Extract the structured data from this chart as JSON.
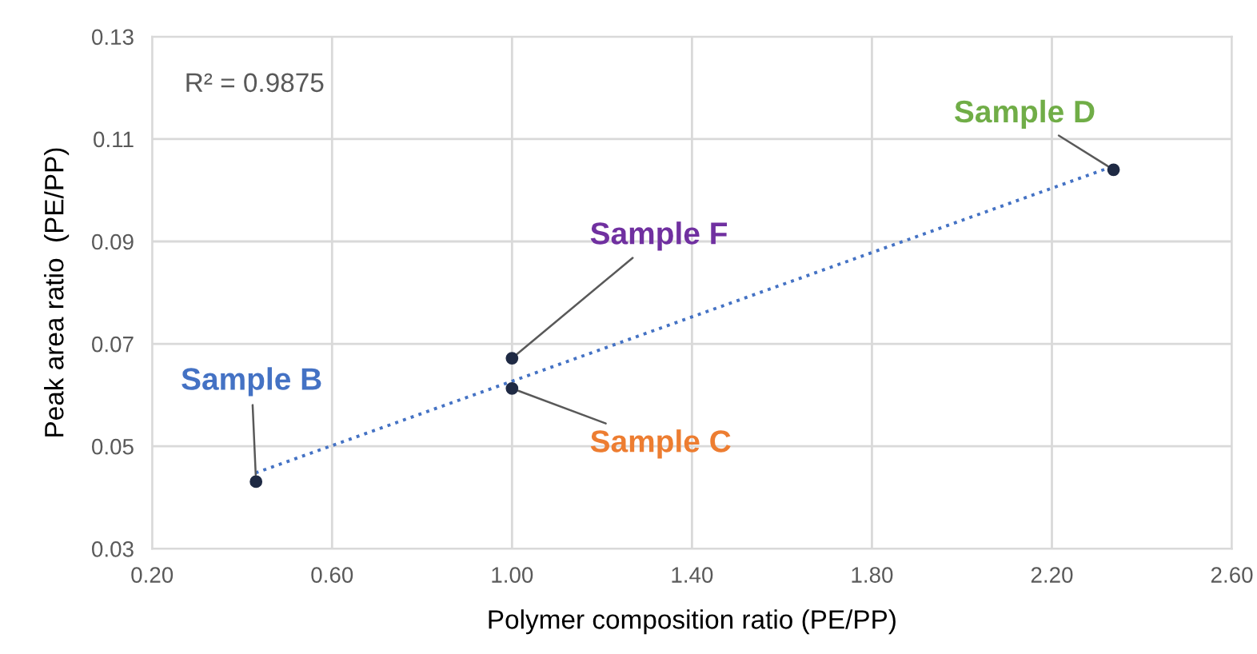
{
  "chart_data": {
    "type": "scatter",
    "xlabel": "Polymer composition ratio (PE/PP)",
    "ylabel": "Peak area ratio  (PE/PP)",
    "series": [
      {
        "color": "#1f2a44",
        "x": [
          0.431,
          1.0,
          1.0,
          2.337
        ],
        "values": [
          0.0431,
          0.0672,
          0.0613,
          0.104
        ],
        "marker": "circle"
      },
      {
        "type": "line",
        "color": "#4472c4",
        "x": [
          0.43,
          2.34
        ],
        "values": [
          0.0448,
          0.1048
        ],
        "line_style": "dotted",
        "marker": "none"
      }
    ],
    "annotations": [
      "R² = 0.9875",
      {
        "text": "Sample B",
        "x": 0.431,
        "y": 0.0431
      },
      {
        "text": "Sample F",
        "x": 1.0,
        "y": 0.0672
      },
      {
        "text": "Sample C",
        "x": 1.0,
        "y": 0.0613
      },
      {
        "text": "Sample D",
        "x": 2.337,
        "y": 0.104
      }
    ],
    "xlim": [
      0.2,
      2.6
    ],
    "ylim": [
      0.03,
      0.13
    ],
    "xticks": [
      {
        "value": 0.2,
        "label": "0.20"
      },
      {
        "value": 0.6,
        "label": "0.60"
      },
      {
        "value": 1.0,
        "label": "1.00"
      },
      {
        "value": 1.4,
        "label": "1.40"
      },
      {
        "value": 1.8,
        "label": "1.80"
      },
      {
        "value": 2.2,
        "label": "2.20"
      },
      {
        "value": 2.6,
        "label": "2.60"
      }
    ],
    "yticks": [
      0.03,
      0.05,
      0.07,
      0.09,
      0.11,
      0.13
    ],
    "grid": true,
    "legend": false
  }
}
